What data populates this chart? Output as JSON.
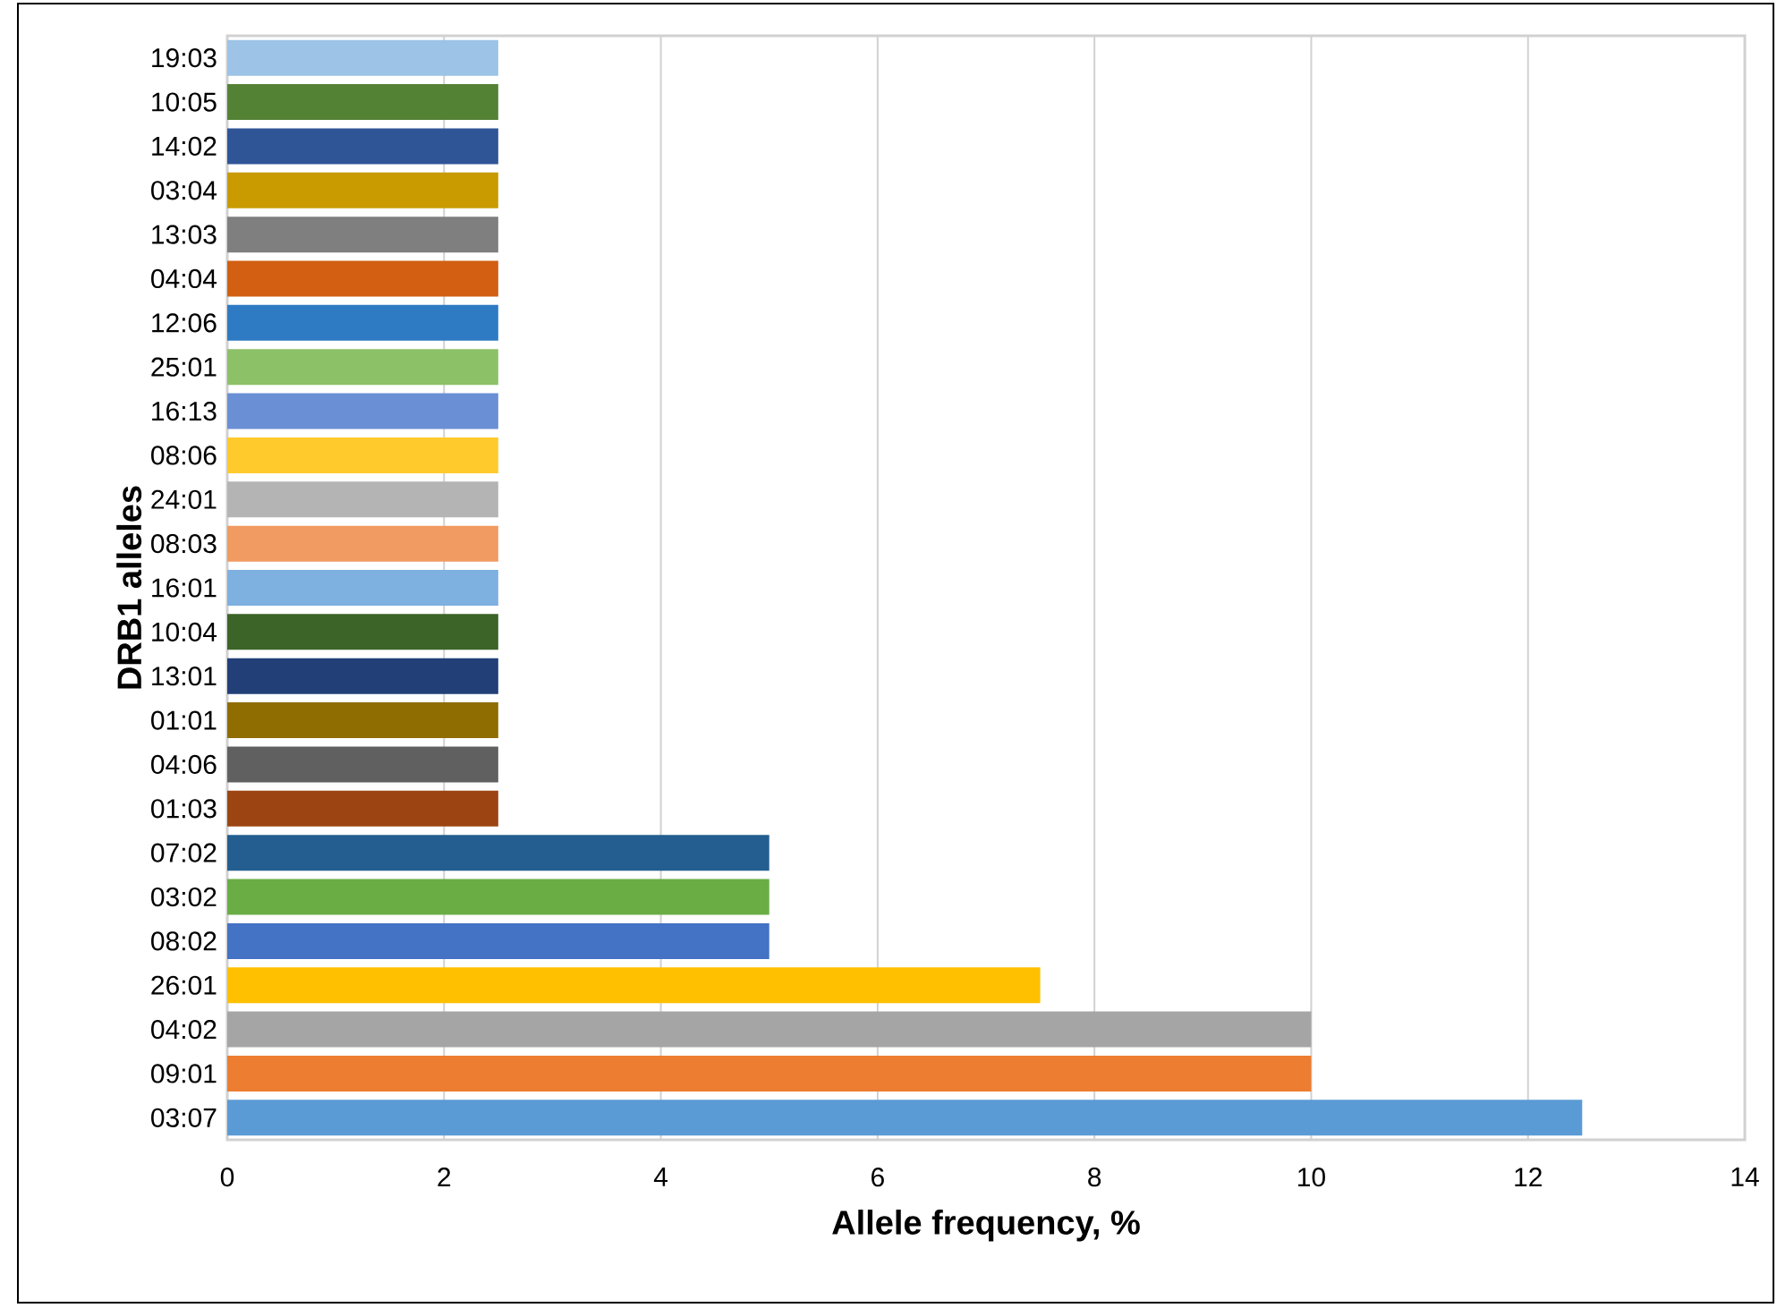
{
  "chart_data": {
    "type": "bar",
    "orientation": "horizontal",
    "xlabel": "Allele frequency, %",
    "ylabel": "DRB1 alleles",
    "categories": [
      "19:03",
      "10:05",
      "14:02",
      "03:04",
      "13:03",
      "04:04",
      "12:06",
      "25:01",
      "16:13",
      "08:06",
      "24:01",
      "08:03",
      "16:01",
      "10:04",
      "13:01",
      "01:01",
      "04:06",
      "01:03",
      "07:02",
      "03:02",
      "08:02",
      "26:01",
      "04:02",
      "09:01",
      "03:07"
    ],
    "values": [
      2.5,
      2.5,
      2.5,
      2.5,
      2.5,
      2.5,
      2.5,
      2.5,
      2.5,
      2.5,
      2.5,
      2.5,
      2.5,
      2.5,
      2.5,
      2.5,
      2.5,
      2.5,
      5,
      5,
      5,
      7.5,
      10,
      10,
      12.5
    ],
    "colors": [
      "#9dc3e6",
      "#548235",
      "#2f5597",
      "#c99b00",
      "#7f7f7f",
      "#d25f12",
      "#2e7bc4",
      "#8cc168",
      "#6a8fd4",
      "#ffca2c",
      "#b4b4b4",
      "#f19a61",
      "#7eb0e0",
      "#3c6428",
      "#223f78",
      "#8f6d00",
      "#606060",
      "#9c4512",
      "#245e90",
      "#6aad45",
      "#4472c4",
      "#ffc000",
      "#a5a5a5",
      "#ed7d31",
      "#5b9bd5"
    ],
    "xlim": [
      0,
      14
    ],
    "xticks": [
      0,
      2,
      4,
      6,
      8,
      10,
      12,
      14
    ],
    "grid": "x"
  }
}
